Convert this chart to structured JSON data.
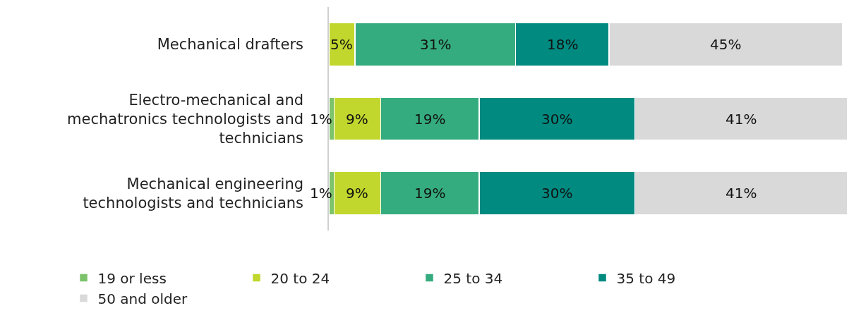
{
  "chart_data": {
    "type": "bar",
    "orientation": "horizontal",
    "stacked": true,
    "categories": [
      "Mechanical drafters",
      "Electro-mechanical and mechatronics technologists and technicians",
      "Mechanical engineering technologists and technicians"
    ],
    "xlim": [
      0,
      100
    ],
    "tick_labels": "y",
    "legend": "bottom",
    "series": [
      {
        "name": "19 or less",
        "color": "#7dc36b",
        "values": [
          null,
          1,
          1
        ],
        "value_labels": [
          null,
          "1%",
          "1%"
        ]
      },
      {
        "name": "20 to 24",
        "color": "#c1d72e",
        "values": [
          5,
          9,
          9
        ],
        "value_labels": [
          "5%",
          "9%",
          "9%"
        ]
      },
      {
        "name": "25 to 34",
        "color": "#35ac7f",
        "values": [
          31,
          19,
          19
        ],
        "value_labels": [
          "31%",
          "19%",
          "19%"
        ]
      },
      {
        "name": "35 to 49",
        "color": "#008a80",
        "values": [
          18,
          30,
          30
        ],
        "value_labels": [
          "18%",
          "30%",
          "30%"
        ]
      },
      {
        "name": "50 and older",
        "color": "#d9d9d9",
        "values": [
          45,
          41,
          41
        ],
        "value_labels": [
          "45%",
          "41%",
          "41%"
        ]
      }
    ]
  }
}
